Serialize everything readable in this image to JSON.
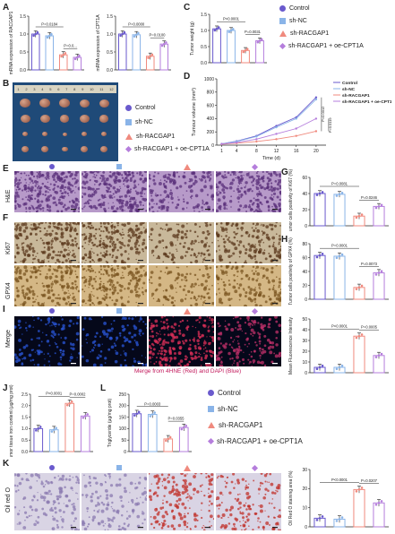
{
  "panels": {
    "A": "A",
    "B": "B",
    "C": "C",
    "D": "D",
    "E": "E",
    "F": "F",
    "G": "G",
    "H": "H",
    "I": "I",
    "J": "J",
    "K": "K",
    "L": "L"
  },
  "groups": [
    "Control",
    "sh-NC",
    "sh-RACGAP1",
    "sh-RACGAP1 + oe-CPT1A"
  ],
  "colors": {
    "control": "#6a5acd",
    "shnc": "#8ab4e8",
    "shrac": "#f08a7e",
    "oe": "#b57edc",
    "bar": "#222222"
  },
  "row_labels": {
    "he": "H&E",
    "ki67": "Ki67",
    "gpx4": "GPX4",
    "merge": "Merge",
    "oilred": "Oil red O"
  },
  "merge_caption": "Merge from 4HNE (Red) and DAPI (Blue)",
  "ruler_numbers": [
    "1",
    "2",
    "3",
    "4",
    "5",
    "6",
    "7",
    "8",
    "9",
    "10",
    "11",
    "12"
  ],
  "chart_data": [
    {
      "id": "A1",
      "type": "bar",
      "ylabel": "mRNA expression of RACGAP1",
      "ylim": [
        0,
        1.5
      ],
      "yticks": [
        "0.0",
        "0.5",
        "1.0",
        "1.5"
      ],
      "values": [
        1.0,
        0.95,
        0.42,
        0.35
      ],
      "pvals": [
        "P=0.0184",
        "P=0.0..."
      ]
    },
    {
      "id": "A2",
      "type": "bar",
      "ylabel": "mRNA expression of CPT1A",
      "ylim": [
        0,
        1.5
      ],
      "yticks": [
        "0.0",
        "0.5",
        "1.0",
        "1.5"
      ],
      "values": [
        1.0,
        0.98,
        0.38,
        0.72
      ],
      "pvals": [
        "P=0.0000",
        "P=0.0100"
      ]
    },
    {
      "id": "C",
      "type": "bar",
      "ylabel": "Tumor weight (g)",
      "ylim": [
        0,
        1.5
      ],
      "yticks": [
        "0.0",
        "0.5",
        "1.0",
        "1.5"
      ],
      "values": [
        1.05,
        1.0,
        0.38,
        0.68
      ],
      "pvals": [
        "P<0.0001",
        "P=0.0031"
      ]
    },
    {
      "id": "D",
      "type": "line",
      "ylabel": "Tumour volume (mm³)",
      "xlabel": "Time (d)",
      "x": [
        1,
        4,
        8,
        12,
        16,
        20
      ],
      "ylim": [
        0,
        1000
      ],
      "yticks": [
        "0",
        "200",
        "400",
        "600",
        "800",
        "1000"
      ],
      "series": [
        {
          "name": "Control",
          "values": [
            20,
            60,
            140,
            290,
            420,
            720
          ]
        },
        {
          "name": "sh-NC",
          "values": [
            20,
            55,
            130,
            270,
            400,
            690
          ]
        },
        {
          "name": "sh-RACGAP1",
          "values": [
            15,
            30,
            55,
            90,
            140,
            210
          ]
        },
        {
          "name": "sh-RACGAP1 + oe-CPT1A",
          "values": [
            18,
            40,
            90,
            170,
            250,
            400
          ]
        }
      ],
      "pvals": [
        "P=0.0012",
        "P=0.0119"
      ]
    },
    {
      "id": "G",
      "type": "bar",
      "ylabel": "Tumor cells positivity of Ki67 (%)",
      "ylim": [
        0,
        60
      ],
      "yticks": [
        "0",
        "20",
        "40",
        "60"
      ],
      "values": [
        40,
        39,
        12,
        24
      ],
      "pvals": [
        "P=0.0081",
        "P=0.0246"
      ]
    },
    {
      "id": "H",
      "type": "bar",
      "ylabel": "Tumor cells positivity of GPX4 (%)",
      "ylim": [
        0,
        80
      ],
      "yticks": [
        "0",
        "20",
        "40",
        "60",
        "80"
      ],
      "values": [
        63,
        62,
        17,
        38
      ],
      "pvals": [
        "P=0.0001",
        "P=0.0073"
      ]
    },
    {
      "id": "I",
      "type": "bar",
      "ylabel": "Mean Fluorescence Intensity",
      "ylim": [
        0,
        50
      ],
      "yticks": [
        "0",
        "10",
        "20",
        "30",
        "40",
        "50"
      ],
      "values": [
        5,
        5,
        34,
        16
      ],
      "pvals": [
        "P<0.0001",
        "P=0.0005"
      ]
    },
    {
      "id": "J",
      "type": "bar",
      "ylabel": "Tumor tissue iron content (μg/mg prot)",
      "ylim": [
        0,
        2.5
      ],
      "yticks": [
        "0.0",
        "0.5",
        "1.0",
        "1.5",
        "2.0",
        "2.5"
      ],
      "values": [
        1.0,
        0.95,
        2.1,
        1.55
      ],
      "pvals": [
        "P<0.0001",
        "P=0.0002"
      ]
    },
    {
      "id": "L",
      "type": "bar",
      "ylabel": "Triglyceride (μg/mg prot)",
      "ylim": [
        0,
        250
      ],
      "yticks": [
        "0",
        "50",
        "100",
        "150",
        "200",
        "250"
      ],
      "values": [
        165,
        162,
        55,
        105
      ],
      "pvals": [
        "P=0.0003",
        "P=0.0355"
      ]
    },
    {
      "id": "K",
      "type": "bar",
      "ylabel": "Oil Red O staining area (%)",
      "ylim": [
        0,
        30
      ],
      "yticks": [
        "0",
        "10",
        "20",
        "30"
      ],
      "values": [
        4.5,
        4.0,
        19.5,
        12.5
      ],
      "pvals": [
        "P<0.0001",
        "P=0.0207"
      ]
    }
  ]
}
